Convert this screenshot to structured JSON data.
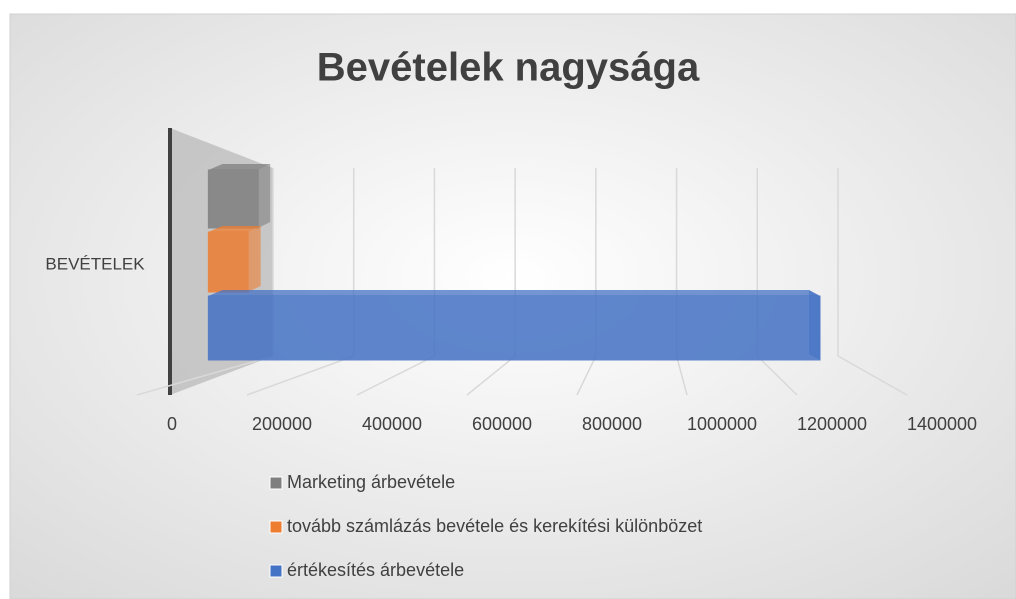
{
  "chart_data": {
    "type": "bar3d_horizontal",
    "title": "Bevételek nagysága",
    "categories": [
      "BEVÉTELEK"
    ],
    "series": [
      {
        "name": "Marketing árbevétele",
        "color": "#7f7f7f",
        "values": [
          100000
        ]
      },
      {
        "name": "tovább számlázás bevétele és kerekítési különbözet",
        "color": "#ed7d31",
        "values": [
          80000
        ]
      },
      {
        "name": "értékesítés árbevétele",
        "color": "#4472c4",
        "values": [
          1230000
        ]
      }
    ],
    "xlim": [
      0,
      1400000
    ],
    "xticks": [
      0,
      200000,
      400000,
      600000,
      800000,
      1000000,
      1200000,
      1400000
    ],
    "grid": true,
    "legend": "bottom"
  }
}
